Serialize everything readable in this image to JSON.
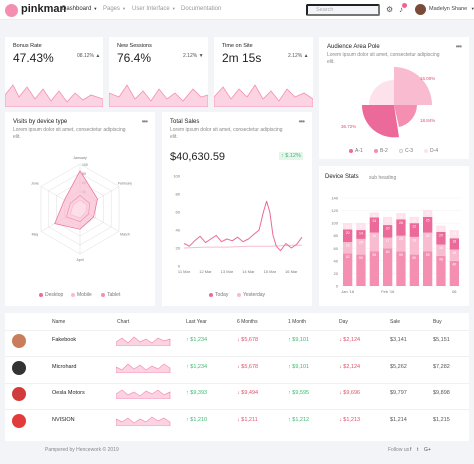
{
  "brand": {
    "name": "pinkman"
  },
  "nav": [
    {
      "label": "Dashboard",
      "active": true
    },
    {
      "label": "Pages",
      "active": false
    },
    {
      "label": "User Interface",
      "active": false
    },
    {
      "label": "Documentation",
      "active": false
    }
  ],
  "search": {
    "placeholder": "Search"
  },
  "user": {
    "name": "Madelyn Shane"
  },
  "stats": [
    {
      "label": "Bonus Rate",
      "value": "47.43%",
      "change": "08.12%",
      "arrow": "▲"
    },
    {
      "label": "New Sessions",
      "value": "76.4%",
      "change": "2.12%",
      "arrow": "▼"
    },
    {
      "label": "Time on Site",
      "value": "2m 15s",
      "change": "2.12%",
      "arrow": "▲"
    }
  ],
  "audience": {
    "title": "Audience Area Pole",
    "subtitle": "Lorem ipsum dolor sit amet, consectetur adipiscing elit.",
    "legend": [
      "A-1",
      "B-2",
      "C-3",
      "D-4"
    ],
    "slice_labels": [
      "16.00%",
      "18.84%",
      "36.72%"
    ]
  },
  "visits": {
    "title": "Visits by device type",
    "subtitle": "Lorem ipsum dolor sit amet, consectetur adipiscing elit.",
    "legend": [
      "Desktop",
      "Mobile",
      "Tablet"
    ]
  },
  "sales": {
    "title": "Total Sales",
    "subtitle": "Lorem ipsum dolor sit amet, consectetur adipiscing elit.",
    "value": "$40,630.59",
    "change": "↑ $.12%",
    "legend": [
      "Today",
      "Yesterday"
    ]
  },
  "device_stats": {
    "title": "Device Stats",
    "subtitle": "sub heading"
  },
  "table": {
    "headers": [
      "Name",
      "Chart",
      "Last Year",
      "6 Months",
      "1 Month",
      "Day",
      "Sale",
      "Buy"
    ],
    "rows": [
      {
        "name": "Fakebook",
        "last_year": "↑ $1,234",
        "six_months": "↓ $5,678",
        "one_month": "↑ $9,101",
        "day": "↓ $2,124",
        "sale": "$3,141",
        "buy": "$5,151"
      },
      {
        "name": "Microhard",
        "last_year": "↑ $1,234",
        "six_months": "↓ $5,678",
        "one_month": "↑ $9,101",
        "day": "↓ $2,124",
        "sale": "$5,262",
        "buy": "$7,282"
      },
      {
        "name": "Oesla Motors",
        "last_year": "↑ $9,393",
        "six_months": "↓ $9,494",
        "one_month": "↑ $9,595",
        "day": "↓ $9,696",
        "sale": "$9,797",
        "buy": "$9,898"
      },
      {
        "name": "NVISION",
        "last_year": "↑ $1,210",
        "six_months": "↓ $1,211",
        "one_month": "↑ $1,212",
        "day": "↓ $1,213",
        "sale": "$1,214",
        "buy": "$1,215"
      }
    ]
  },
  "footer": {
    "copyright": "Pampered by Hencework © 2019",
    "follow": "Follow us",
    "social": [
      "f",
      "t",
      "G+"
    ]
  },
  "colors": {
    "accent": "#f06292",
    "pink_light": "#f8bbd0",
    "pink_mid": "#f48fb1",
    "up": "#3dba6f",
    "down": "#e2506a"
  },
  "chart_data": [
    {
      "type": "radar",
      "title": "Visits by device type",
      "axes": [
        "Jamuary",
        "February",
        "March",
        "April",
        "May",
        "June"
      ],
      "rlim": [
        0,
        100
      ],
      "r_ticks": [
        20,
        40,
        60,
        80,
        100
      ],
      "series": [
        {
          "name": "Desktop",
          "values": [
            85,
            45,
            35,
            45,
            65,
            40
          ]
        },
        {
          "name": "Mobile",
          "values": [
            30,
            25,
            22,
            28,
            35,
            25
          ]
        },
        {
          "name": "Tablet",
          "values": [
            20,
            18,
            15,
            20,
            25,
            18
          ]
        }
      ]
    },
    {
      "type": "line",
      "title": "Total Sales",
      "x_ticks": [
        "11 Mar",
        "12 Mar",
        "13 Mar",
        "14 Mar",
        "15 Mar",
        "16 Mar"
      ],
      "ylim": [
        0,
        100
      ],
      "y_ticks": [
        0,
        20,
        40,
        60,
        80,
        100
      ],
      "series": [
        {
          "name": "Today",
          "x": [
            0,
            0.25,
            0.5,
            0.75,
            1,
            1.25,
            1.5,
            1.75,
            2,
            2.25,
            2.5,
            2.75,
            3,
            3.25,
            3.5,
            3.7,
            3.85,
            4,
            4.15,
            4.3,
            4.5,
            4.75,
            5,
            5.25,
            5.5
          ],
          "values": [
            25,
            22,
            28,
            33,
            26,
            30,
            34,
            27,
            30,
            28,
            32,
            27,
            30,
            35,
            40,
            60,
            72,
            60,
            34,
            22,
            17,
            25,
            20,
            24,
            32
          ]
        },
        {
          "name": "Yesterday",
          "x": [
            0,
            1,
            2,
            3,
            4,
            5,
            5.5
          ],
          "values": [
            20,
            21,
            21,
            22,
            22,
            23,
            23
          ]
        }
      ]
    },
    {
      "type": "bar",
      "title": "Device Stats",
      "stacked": true,
      "categories": [
        "Jan '16",
        "",
        "",
        "Feb '16",
        "",
        "",
        "",
        "",
        "06"
      ],
      "ylim": [
        0,
        140
      ],
      "y_ticks": [
        0,
        20,
        40,
        60,
        80,
        100,
        120,
        140
      ],
      "series": [
        {
          "name": "s1",
          "values": [
            52,
            50,
            55,
            60,
            55,
            50,
            55,
            48,
            40
          ]
        },
        {
          "name": "s2",
          "values": [
            18,
            25,
            30,
            17,
            25,
            28,
            30,
            18,
            18
          ]
        },
        {
          "name": "s3",
          "values": [
            20,
            14,
            24,
            20,
            26,
            22,
            25,
            20,
            18
          ]
        },
        {
          "name": "s4",
          "values": [
            10,
            11,
            8,
            13,
            10,
            10,
            11,
            10,
            13
          ]
        }
      ],
      "bar_labels": [
        [
          "52",
          "50",
          "55",
          "60",
          "55",
          "50",
          "55",
          "48",
          "40"
        ],
        [
          "18",
          "25",
          "30",
          "17",
          "25",
          "28",
          "30",
          "18",
          "18"
        ],
        [
          "20",
          "14",
          "24",
          "20",
          "26",
          "22",
          "25",
          "20",
          "18"
        ],
        [
          "10",
          "11",
          "8",
          "13",
          "10",
          "10",
          "11",
          "10",
          "13"
        ]
      ]
    },
    {
      "type": "pie",
      "title": "Audience Area Pole",
      "categories": [
        "A-1",
        "B-2",
        "C-3",
        "D-4"
      ],
      "values": [
        36.72,
        18.84,
        16.0,
        28.44
      ]
    }
  ]
}
